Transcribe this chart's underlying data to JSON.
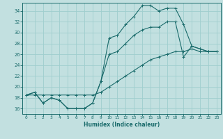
{
  "xlabel": "Humidex (Indice chaleur)",
  "xlim": [
    -0.5,
    23.5
  ],
  "ylim": [
    15.0,
    35.5
  ],
  "yticks": [
    16,
    18,
    20,
    22,
    24,
    26,
    28,
    30,
    32,
    34
  ],
  "xticks": [
    0,
    1,
    2,
    3,
    4,
    5,
    6,
    7,
    8,
    9,
    10,
    11,
    12,
    13,
    14,
    15,
    16,
    17,
    18,
    19,
    20,
    21,
    22,
    23
  ],
  "bg_color": "#c2e0e0",
  "grid_color": "#9fcece",
  "line_color": "#1a6b6b",
  "line1_x": [
    0,
    1,
    2,
    3,
    4,
    5,
    6,
    7,
    8,
    9,
    10,
    11,
    12,
    13,
    14,
    15,
    16,
    17,
    18,
    19,
    20,
    21,
    22,
    23
  ],
  "line1_y": [
    18.5,
    18.5,
    18.5,
    18.5,
    18.5,
    18.5,
    18.5,
    18.5,
    18.5,
    19.0,
    20.0,
    21.0,
    22.0,
    23.0,
    24.0,
    25.0,
    25.5,
    26.0,
    26.5,
    26.5,
    27.0,
    26.5,
    26.5,
    26.5
  ],
  "line2_x": [
    0,
    1,
    2,
    3,
    4,
    5,
    6,
    7,
    8,
    9,
    10,
    11,
    12,
    13,
    14,
    15,
    16,
    17,
    18,
    19,
    20,
    21,
    22,
    23
  ],
  "line2_y": [
    18.5,
    19.0,
    17.0,
    18.0,
    17.5,
    16.0,
    16.0,
    16.0,
    17.0,
    21.0,
    29.0,
    29.5,
    31.5,
    33.0,
    35.0,
    35.0,
    34.0,
    34.5,
    34.5,
    31.5,
    27.5,
    27.0,
    26.5,
    26.5
  ],
  "line3_x": [
    0,
    1,
    2,
    3,
    4,
    5,
    6,
    7,
    8,
    9,
    10,
    11,
    12,
    13,
    14,
    15,
    16,
    17,
    18,
    19,
    20,
    21,
    22,
    23
  ],
  "line3_y": [
    18.5,
    19.0,
    17.0,
    18.0,
    17.5,
    16.0,
    16.0,
    16.0,
    17.0,
    21.0,
    26.0,
    26.5,
    28.0,
    29.5,
    30.5,
    31.0,
    31.0,
    32.0,
    32.0,
    25.5,
    27.5,
    27.0,
    26.5,
    26.5
  ]
}
